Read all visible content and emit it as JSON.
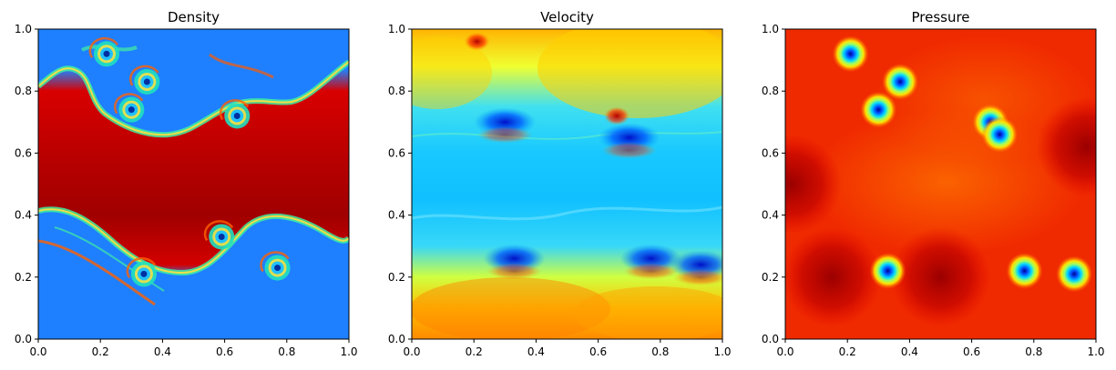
{
  "chart_data": [
    {
      "type": "heatmap",
      "title": "Density",
      "colormap": "jet",
      "xlabel": "",
      "ylabel": "",
      "xlim": [
        0.0,
        1.0
      ],
      "ylim": [
        0.0,
        1.0
      ],
      "xticks": [
        "0.0",
        "0.2",
        "0.4",
        "0.6",
        "0.8",
        "1.0"
      ],
      "yticks": [
        "0.0",
        "0.2",
        "0.4",
        "0.6",
        "0.8",
        "1.0"
      ],
      "grid": false,
      "field": "Kelvin-Helmholtz mixing layers: high (red) central band from y≈0.35 to y≈0.85 with rolled-up vortex billows along both interfaces; low (blue) regions near top and bottom",
      "features": [
        {
          "kind": "vortex",
          "x": 0.22,
          "y": 0.92
        },
        {
          "kind": "vortex",
          "x": 0.35,
          "y": 0.83
        },
        {
          "kind": "vortex",
          "x": 0.3,
          "y": 0.74
        },
        {
          "kind": "vortex",
          "x": 0.64,
          "y": 0.72
        },
        {
          "kind": "vortex",
          "x": 0.34,
          "y": 0.21
        },
        {
          "kind": "vortex",
          "x": 0.59,
          "y": 0.33
        },
        {
          "kind": "vortex",
          "x": 0.77,
          "y": 0.23
        }
      ]
    },
    {
      "type": "heatmap",
      "title": "Velocity",
      "colormap": "jet",
      "xlabel": "",
      "ylabel": "",
      "xlim": [
        0.0,
        1.0
      ],
      "ylim": [
        0.0,
        1.0
      ],
      "xticks": [
        "0.0",
        "0.2",
        "0.4",
        "0.6",
        "0.8",
        "1.0"
      ],
      "yticks": [
        "0.0",
        "0.2",
        "0.4",
        "0.6",
        "0.8",
        "1.0"
      ],
      "grid": false,
      "field": "Low (cyan/blue) in the middle band, high (yellow/orange/red) near the top and bottom edges, dark blue vortex cores at shear layers",
      "features": [
        {
          "kind": "low-core",
          "x": 0.3,
          "y": 0.7
        },
        {
          "kind": "low-core",
          "x": 0.7,
          "y": 0.65
        },
        {
          "kind": "low-core",
          "x": 0.33,
          "y": 0.26
        },
        {
          "kind": "low-core",
          "x": 0.77,
          "y": 0.26
        },
        {
          "kind": "low-core",
          "x": 0.93,
          "y": 0.24
        },
        {
          "kind": "high-spot",
          "x": 0.21,
          "y": 0.96
        },
        {
          "kind": "high-spot",
          "x": 0.66,
          "y": 0.72
        }
      ]
    },
    {
      "type": "heatmap",
      "title": "Pressure",
      "colormap": "jet",
      "xlabel": "",
      "ylabel": "",
      "xlim": [
        0.0,
        1.0
      ],
      "ylim": [
        0.0,
        1.0
      ],
      "xticks": [
        "0.0",
        "0.2",
        "0.4",
        "0.6",
        "0.8",
        "1.0"
      ],
      "yticks": [
        "0.0",
        "0.2",
        "0.4",
        "0.6",
        "0.8",
        "1.0"
      ],
      "grid": false,
      "field": "Mostly red/orange background with dark red zones and isolated low-pressure (blue) cores at vortex centers",
      "features": [
        {
          "kind": "low-core",
          "x": 0.21,
          "y": 0.92
        },
        {
          "kind": "low-core",
          "x": 0.37,
          "y": 0.83
        },
        {
          "kind": "low-core",
          "x": 0.3,
          "y": 0.74
        },
        {
          "kind": "low-core",
          "x": 0.66,
          "y": 0.7
        },
        {
          "kind": "low-core",
          "x": 0.69,
          "y": 0.66
        },
        {
          "kind": "low-core",
          "x": 0.33,
          "y": 0.22
        },
        {
          "kind": "low-core",
          "x": 0.77,
          "y": 0.22
        },
        {
          "kind": "low-core",
          "x": 0.93,
          "y": 0.21
        },
        {
          "kind": "high-zone",
          "x": 0.15,
          "y": 0.2
        },
        {
          "kind": "high-zone",
          "x": 0.5,
          "y": 0.2
        },
        {
          "kind": "high-zone",
          "x": 0.02,
          "y": 0.5
        },
        {
          "kind": "high-zone",
          "x": 0.97,
          "y": 0.62
        }
      ]
    }
  ]
}
